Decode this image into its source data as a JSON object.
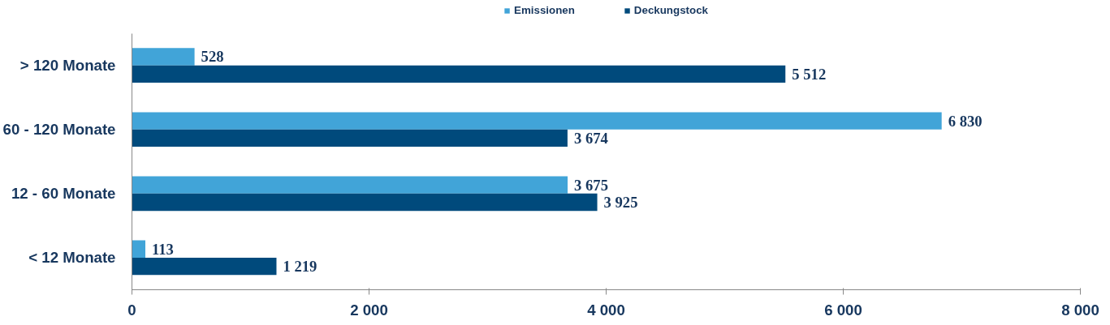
{
  "chart_data": {
    "type": "bar",
    "orientation": "horizontal",
    "categories": [
      "> 120 Monate",
      "60 - 120 Monate",
      "12 - 60 Monate",
      "< 12 Monate"
    ],
    "series": [
      {
        "name": "Emissionen",
        "color": "#41a4d8",
        "values": [
          528,
          6830,
          3675,
          113
        ],
        "value_labels": [
          "528",
          "6 830",
          "3 675",
          "113"
        ]
      },
      {
        "name": "Deckungstock",
        "color": "#004a7c",
        "values": [
          5512,
          3674,
          3925,
          1219
        ],
        "value_labels": [
          "5 512",
          "3 674",
          "3 925",
          "1 219"
        ]
      }
    ],
    "xlim": [
      0,
      8000
    ],
    "xticks": [
      0,
      {
        "value": 2000,
        "label": "2 000"
      },
      {
        "value": 4000,
        "label": "4 000"
      },
      {
        "value": 6000,
        "label": "6 000"
      },
      {
        "value": 8000,
        "label": "8 000"
      }
    ],
    "legend": "top",
    "grid": false
  }
}
